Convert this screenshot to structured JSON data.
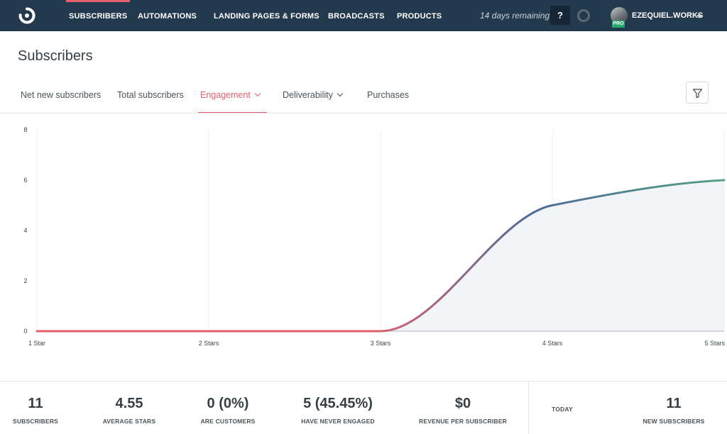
{
  "nav": {
    "items": [
      {
        "label": "SUBSCRIBERS",
        "active": true
      },
      {
        "label": "AUTOMATIONS",
        "active": false
      },
      {
        "label": "LANDING PAGES & FORMS",
        "active": false
      },
      {
        "label": "BROADCASTS",
        "active": false
      },
      {
        "label": "PRODUCTS",
        "active": false
      }
    ],
    "trial_text": "14 days remaining",
    "help_label": "?",
    "username": "EZEQUIEL.WORKS",
    "badge": "PRO"
  },
  "page": {
    "title": "Subscribers"
  },
  "tabs": [
    {
      "label": "Net new subscribers",
      "active": false,
      "dropdown": false
    },
    {
      "label": "Total subscribers",
      "active": false,
      "dropdown": false
    },
    {
      "label": "Engagement",
      "active": true,
      "dropdown": true
    },
    {
      "label": "Deliverability",
      "active": false,
      "dropdown": true
    },
    {
      "label": "Purchases",
      "active": false,
      "dropdown": false
    }
  ],
  "chart_data": {
    "type": "area",
    "categories": [
      "1 Star",
      "2 Stars",
      "3 Stars",
      "4 Stars",
      "5 Stars"
    ],
    "series": [
      {
        "values": [
          0,
          0,
          0,
          5,
          6
        ]
      }
    ],
    "y_ticks": [
      "0",
      "2",
      "4",
      "6",
      "8"
    ],
    "ylim": [
      0,
      8
    ],
    "grid": true,
    "line_gradient": [
      "#e4606d",
      "#4f6b9b",
      "#56a385"
    ],
    "fill_color": "#f3f4f7"
  },
  "stats": [
    {
      "value": "11",
      "label": "SUBSCRIBERS"
    },
    {
      "value": "4.55",
      "label": "AVERAGE STARS"
    },
    {
      "value": "0 (0%)",
      "label": "ARE CUSTOMERS"
    },
    {
      "value": "5 (45.45%)",
      "label": "HAVE NEVER ENGAGED"
    },
    {
      "value": "$0",
      "label": "REVENUE PER SUBSCRIBER"
    }
  ],
  "today": {
    "label": "TODAY",
    "value": "11",
    "value_label": "NEW SUBSCRIBERS"
  }
}
